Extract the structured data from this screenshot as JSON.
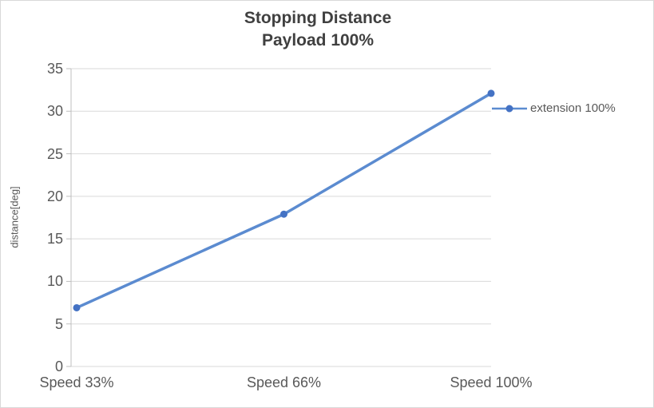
{
  "chart_data": {
    "type": "line",
    "title": "Stopping Distance",
    "subtitle": "Payload 100%",
    "ylabel": "distance[deg]",
    "xlabel": "",
    "categories": [
      "Speed 33%",
      "Speed 66%",
      "Speed 100%"
    ],
    "series": [
      {
        "name": "extension 100%",
        "values": [
          6.9,
          17.9,
          32.1
        ]
      }
    ],
    "ylim": [
      0,
      35
    ],
    "yticks": [
      0,
      5,
      10,
      15,
      20,
      25,
      30,
      35
    ],
    "grid": "horizontal",
    "legend_position": "right",
    "colors": {
      "line": "#5b8bd0",
      "marker": "#4472c4",
      "grid": "#d9d9d9",
      "axis": "#bfbfbf",
      "text": "#595959",
      "title": "#404040",
      "border": "#d9d9d9"
    }
  }
}
